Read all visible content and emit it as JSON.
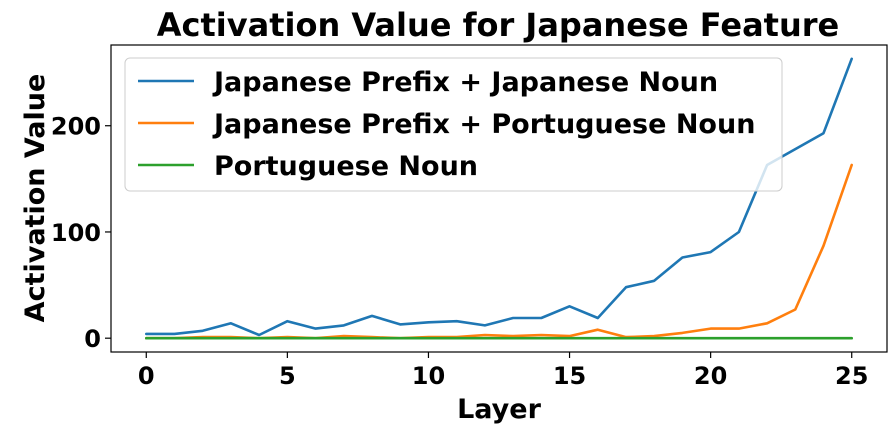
{
  "chart_data": {
    "type": "line",
    "title": "Activation Value for Japanese Feature",
    "xlabel": "Layer",
    "ylabel": "Activation Value",
    "xlim": [
      -1.25,
      26.25
    ],
    "ylim": [
      -13,
      276
    ],
    "xticks": [
      0,
      5,
      10,
      15,
      20,
      25
    ],
    "yticks": [
      0,
      100,
      200
    ],
    "grid": false,
    "legend_position": "top-left",
    "x": [
      0,
      1,
      2,
      3,
      4,
      5,
      6,
      7,
      8,
      9,
      10,
      11,
      12,
      13,
      14,
      15,
      16,
      17,
      18,
      19,
      20,
      21,
      22,
      23,
      24,
      25
    ],
    "series": [
      {
        "name": "Japanese Prefix + Japanese Noun",
        "color": "#1f77b4",
        "values": [
          4,
          4,
          7,
          14,
          3,
          16,
          9,
          12,
          21,
          13,
          15,
          16,
          12,
          19,
          19,
          30,
          19,
          48,
          54,
          76,
          81,
          100,
          163,
          178,
          193,
          263
        ]
      },
      {
        "name": "Japanese Prefix + Portuguese Noun",
        "color": "#ff7f0e",
        "values": [
          0,
          0,
          1,
          1,
          0,
          1,
          0,
          2,
          1,
          0,
          1,
          1,
          3,
          2,
          3,
          2,
          8,
          1,
          2,
          5,
          9,
          9,
          14,
          27,
          87,
          163
        ]
      },
      {
        "name": "Portuguese Noun",
        "color": "#2ca02c",
        "values": [
          0,
          0,
          0,
          0,
          0,
          0,
          0,
          0,
          0,
          0,
          0,
          0,
          0,
          0,
          0,
          0,
          0,
          0,
          0,
          0,
          0,
          0,
          0,
          0,
          0,
          0
        ]
      }
    ]
  }
}
